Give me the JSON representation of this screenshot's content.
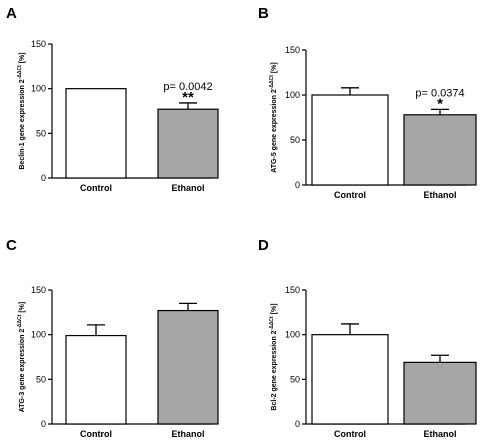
{
  "chart_data": [
    {
      "panel": "A",
      "type": "bar",
      "categories": [
        "Control",
        "Ethanol"
      ],
      "values": [
        100,
        77
      ],
      "errors": [
        0,
        7
      ],
      "bar_colors": [
        "#ffffff",
        "#a6a6a6"
      ],
      "ylabel_main": "Beclin-1 gene expression 2",
      "ylabel_sup": "-ΔΔCt",
      "ylabel_unit": " [%]",
      "yticks": [
        0,
        50,
        100,
        150
      ],
      "ylim": [
        0,
        150
      ],
      "pvalue": "p= 0.0042",
      "significance": "**"
    },
    {
      "panel": "B",
      "type": "bar",
      "categories": [
        "Control",
        "Ethanol"
      ],
      "values": [
        100,
        78
      ],
      "errors": [
        8,
        6
      ],
      "bar_colors": [
        "#ffffff",
        "#a6a6a6"
      ],
      "ylabel_main": "ATG-5 gene expression 2",
      "ylabel_sup": "-ΔΔCt",
      "ylabel_unit": " [%]",
      "yticks": [
        0,
        50,
        100,
        150
      ],
      "ylim": [
        0,
        150
      ],
      "pvalue": "p= 0.0374",
      "significance": "*"
    },
    {
      "panel": "C",
      "type": "bar",
      "categories": [
        "Control",
        "Ethanol"
      ],
      "values": [
        99,
        127
      ],
      "errors": [
        12,
        8
      ],
      "bar_colors": [
        "#ffffff",
        "#a6a6a6"
      ],
      "ylabel_main": "ATG-3 gene expression 2",
      "ylabel_sup": "-ΔΔCt",
      "ylabel_unit": " [%]",
      "yticks": [
        0,
        50,
        100,
        150
      ],
      "ylim": [
        0,
        150
      ],
      "pvalue": "",
      "significance": ""
    },
    {
      "panel": "D",
      "type": "bar",
      "categories": [
        "Control",
        "Ethanol"
      ],
      "values": [
        100,
        69
      ],
      "errors": [
        12,
        8
      ],
      "bar_colors": [
        "#ffffff",
        "#a6a6a6"
      ],
      "ylabel_main": "Bcl-2 gene expression 2",
      "ylabel_sup": "-ΔΔCt",
      "ylabel_unit": " [%]",
      "yticks": [
        0,
        50,
        100,
        150
      ],
      "ylim": [
        0,
        150
      ],
      "pvalue": "",
      "significance": ""
    }
  ]
}
